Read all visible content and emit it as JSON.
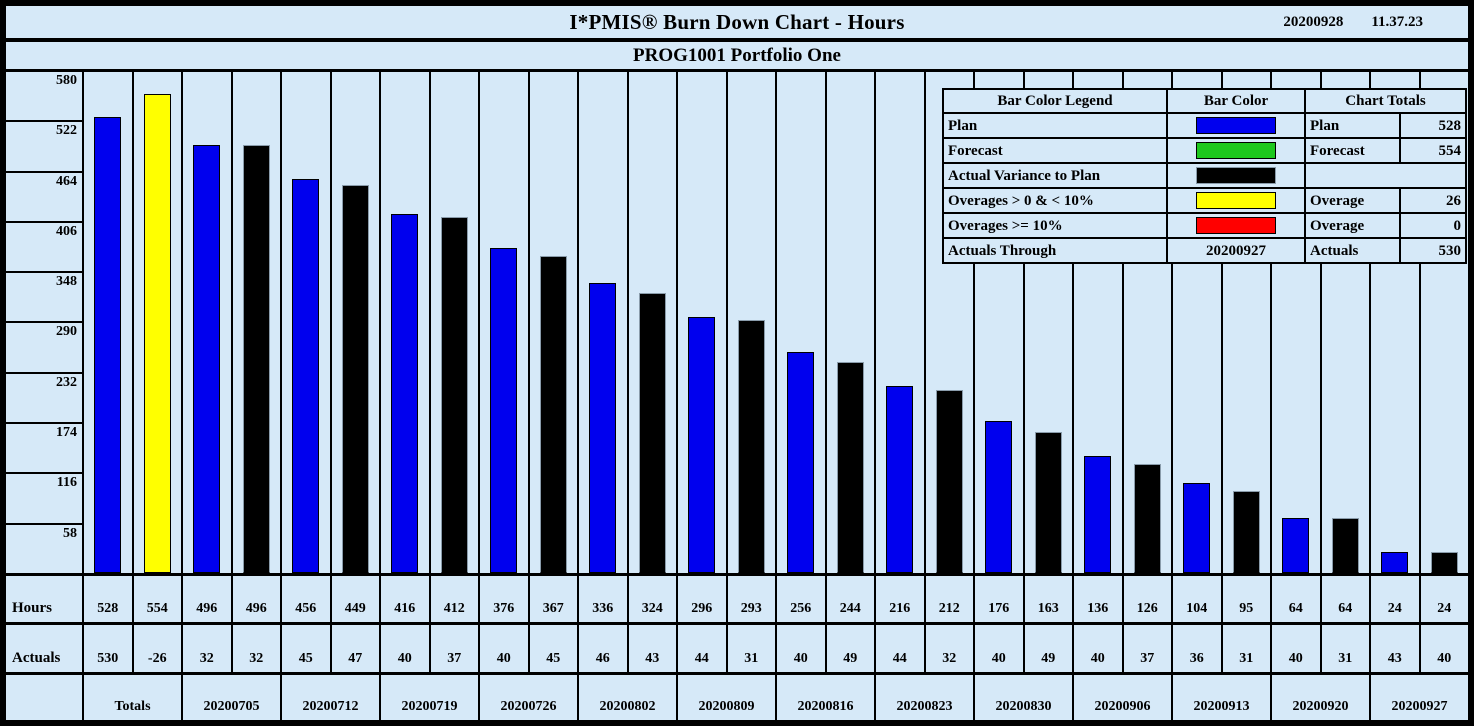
{
  "header": {
    "title": "I*PMIS® Burn Down Chart - Hours",
    "date": "20200928",
    "time": "11.37.23"
  },
  "subtitle": "PROG1001 Portfolio One",
  "palette": {
    "plan": "#0000ee",
    "forecast": "#1dc81d",
    "actual_variance": "#000000",
    "overage_low": "#ffff00",
    "overage_high": "#ff0000"
  },
  "ui": {
    "panel_color": "#d6e9f8",
    "line_color": "#000000"
  },
  "legend": {
    "headers": [
      "Bar Color Legend",
      "Bar Color",
      "Chart Totals"
    ],
    "rows": [
      {
        "label": "Plan",
        "swatch": "plan",
        "total_label": "Plan",
        "total_value": "528"
      },
      {
        "label": "Forecast",
        "swatch": "forecast",
        "total_label": "Forecast",
        "total_value": "554"
      },
      {
        "label": "Actual Variance to Plan",
        "swatch": "actual_variance",
        "total_merged": true,
        "total_label": "",
        "total_value": ""
      },
      {
        "label": "Overages > 0 & < 10%",
        "swatch": "overage_low",
        "total_label": "Overage",
        "total_value": "26"
      },
      {
        "label": "Overages >= 10%",
        "swatch": "overage_high",
        "total_label": "Overage",
        "total_value": "0"
      },
      {
        "label": "Actuals Through",
        "swatch_text": "20200927",
        "total_label": "Actuals",
        "total_value": "530"
      }
    ]
  },
  "table": {
    "row_labels": [
      "Hours",
      "Actuals"
    ],
    "group_labels": [
      "Totals",
      "20200705",
      "20200712",
      "20200719",
      "20200726",
      "20200802",
      "20200809",
      "20200816",
      "20200823",
      "20200830",
      "20200906",
      "20200913",
      "20200920",
      "20200927"
    ]
  },
  "chart_data": {
    "type": "bar",
    "title": "I*PMIS® Burn Down Chart - Hours",
    "subtitle": "PROG1001 Portfolio One",
    "ylabel": "Hours",
    "ylim": [
      0,
      580
    ],
    "yticks": [
      580,
      522,
      464,
      406,
      348,
      290,
      232,
      174,
      116,
      58
    ],
    "grid": "vertical-column-separators",
    "legend_position": "top-right",
    "bar_values": [
      528,
      554,
      496,
      496,
      456,
      449,
      416,
      412,
      376,
      367,
      336,
      324,
      296,
      293,
      256,
      244,
      216,
      212,
      176,
      163,
      136,
      126,
      104,
      95,
      64,
      64,
      24,
      24
    ],
    "bar_colors": [
      "plan",
      "overage_low",
      "plan",
      "actual_variance",
      "plan",
      "actual_variance",
      "plan",
      "actual_variance",
      "plan",
      "actual_variance",
      "plan",
      "actual_variance",
      "plan",
      "actual_variance",
      "plan",
      "actual_variance",
      "plan",
      "actual_variance",
      "plan",
      "actual_variance",
      "plan",
      "actual_variance",
      "plan",
      "actual_variance",
      "plan",
      "actual_variance",
      "plan",
      "actual_variance"
    ],
    "hours_row": [
      528,
      554,
      496,
      496,
      456,
      449,
      416,
      412,
      376,
      367,
      336,
      324,
      296,
      293,
      256,
      244,
      216,
      212,
      176,
      163,
      136,
      126,
      104,
      95,
      64,
      64,
      24,
      24
    ],
    "actuals_row": [
      530,
      -26,
      32,
      32,
      45,
      47,
      40,
      37,
      40,
      45,
      46,
      43,
      44,
      31,
      40,
      49,
      44,
      32,
      40,
      49,
      40,
      37,
      36,
      31,
      40,
      31,
      43,
      40
    ],
    "group_labels": [
      "Totals",
      "20200705",
      "20200712",
      "20200719",
      "20200726",
      "20200802",
      "20200809",
      "20200816",
      "20200823",
      "20200830",
      "20200906",
      "20200913",
      "20200920",
      "20200927"
    ]
  }
}
